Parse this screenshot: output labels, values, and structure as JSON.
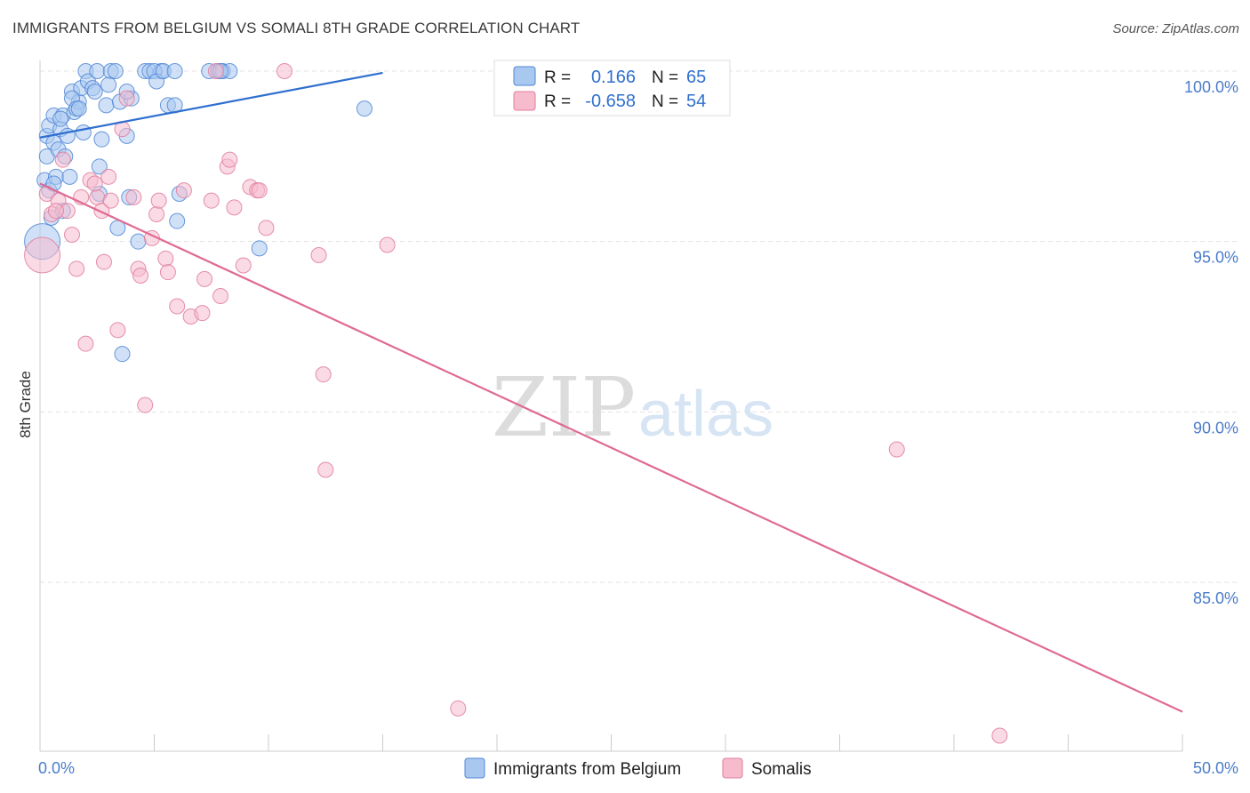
{
  "title": "IMMIGRANTS FROM BELGIUM VS SOMALI 8TH GRADE CORRELATION CHART",
  "source": "Source: ZipAtlas.com",
  "watermark": {
    "zip": "ZIP",
    "atlas": "atlas"
  },
  "colors": {
    "blue_fill": "#a9c8f0",
    "blue_stroke": "#4f86d6",
    "blue_line": "#2f6fcf",
    "pink_fill": "#f6bccd",
    "pink_stroke": "#e07c9c",
    "pink_line": "#e06a94",
    "grid": "#e3e3e3",
    "tick_text": "#4a7cc9"
  },
  "stats_legend": {
    "rows": [
      {
        "r_label": "R =",
        "r_value": "0.166",
        "n_label": "N =",
        "n_value": "65",
        "series": "blue"
      },
      {
        "r_label": "R =",
        "r_value": "-0.658",
        "n_label": "N =",
        "n_value": "54",
        "series": "pink"
      }
    ]
  },
  "chart_data": {
    "type": "scatter",
    "title": "IMMIGRANTS FROM BELGIUM VS SOMALI 8TH GRADE CORRELATION CHART",
    "xlabel": "",
    "ylabel": "8th Grade",
    "xlim": [
      0,
      50
    ],
    "ylim": [
      80.3,
      100.4
    ],
    "x_tick_labels": [
      "0.0%",
      "50.0%"
    ],
    "y_ticks": [
      100,
      95,
      90,
      85
    ],
    "y_tick_labels": [
      "100.0%",
      "95.0%",
      "90.0%",
      "85.0%"
    ],
    "legend": [
      "Immigrants from Belgium",
      "Somalis"
    ],
    "series": [
      {
        "name": "Immigrants from Belgium",
        "color": "blue",
        "r": 0.166,
        "n": 65,
        "trendline": {
          "x": [
            0,
            15
          ],
          "y": [
            98.05,
            99.95
          ]
        },
        "points": [
          {
            "x": 0.1,
            "y": 95.0,
            "big": true
          },
          {
            "x": 0.2,
            "y": 96.8
          },
          {
            "x": 0.3,
            "y": 97.5
          },
          {
            "x": 0.3,
            "y": 98.1
          },
          {
            "x": 0.4,
            "y": 98.4
          },
          {
            "x": 0.4,
            "y": 96.5
          },
          {
            "x": 0.5,
            "y": 95.7
          },
          {
            "x": 0.6,
            "y": 97.9
          },
          {
            "x": 0.6,
            "y": 98.7
          },
          {
            "x": 0.7,
            "y": 96.9
          },
          {
            "x": 0.8,
            "y": 97.7
          },
          {
            "x": 0.9,
            "y": 98.3
          },
          {
            "x": 1.0,
            "y": 95.9
          },
          {
            "x": 1.0,
            "y": 98.7
          },
          {
            "x": 1.1,
            "y": 97.5
          },
          {
            "x": 1.2,
            "y": 98.1
          },
          {
            "x": 1.3,
            "y": 96.9
          },
          {
            "x": 1.4,
            "y": 99.4
          },
          {
            "x": 1.5,
            "y": 98.8
          },
          {
            "x": 1.7,
            "y": 99.1
          },
          {
            "x": 1.8,
            "y": 99.5
          },
          {
            "x": 1.9,
            "y": 98.2
          },
          {
            "x": 2.0,
            "y": 100.0
          },
          {
            "x": 2.1,
            "y": 99.7
          },
          {
            "x": 2.3,
            "y": 99.5
          },
          {
            "x": 2.5,
            "y": 100.0
          },
          {
            "x": 2.6,
            "y": 97.2
          },
          {
            "x": 2.6,
            "y": 96.4
          },
          {
            "x": 2.9,
            "y": 99.0
          },
          {
            "x": 3.1,
            "y": 100.0
          },
          {
            "x": 3.3,
            "y": 100.0
          },
          {
            "x": 3.4,
            "y": 95.4
          },
          {
            "x": 3.5,
            "y": 99.1
          },
          {
            "x": 3.8,
            "y": 98.1
          },
          {
            "x": 2.4,
            "y": 99.4
          },
          {
            "x": 3.0,
            "y": 99.6
          },
          {
            "x": 4.0,
            "y": 99.2
          },
          {
            "x": 4.3,
            "y": 95.0
          },
          {
            "x": 4.6,
            "y": 100.0
          },
          {
            "x": 4.8,
            "y": 100.0
          },
          {
            "x": 5.3,
            "y": 100.0
          },
          {
            "x": 3.6,
            "y": 91.7
          },
          {
            "x": 3.8,
            "y": 99.4
          },
          {
            "x": 5.0,
            "y": 100.0
          },
          {
            "x": 5.1,
            "y": 99.7
          },
          {
            "x": 5.6,
            "y": 99.0
          },
          {
            "x": 3.9,
            "y": 96.3
          },
          {
            "x": 6.1,
            "y": 96.4
          },
          {
            "x": 6.0,
            "y": 95.6
          },
          {
            "x": 7.4,
            "y": 100.0
          },
          {
            "x": 1.4,
            "y": 99.2
          },
          {
            "x": 0.9,
            "y": 98.6
          },
          {
            "x": 1.6,
            "y": 98.9
          },
          {
            "x": 5.4,
            "y": 100.0
          },
          {
            "x": 5.9,
            "y": 100.0
          },
          {
            "x": 5.9,
            "y": 99.0
          },
          {
            "x": 7.8,
            "y": 100.0
          },
          {
            "x": 8.0,
            "y": 100.0
          },
          {
            "x": 8.3,
            "y": 100.0
          },
          {
            "x": 7.9,
            "y": 100.0
          },
          {
            "x": 9.6,
            "y": 94.8
          },
          {
            "x": 14.2,
            "y": 98.9
          },
          {
            "x": 1.7,
            "y": 98.9
          },
          {
            "x": 2.7,
            "y": 98.0
          },
          {
            "x": 0.6,
            "y": 96.7
          }
        ]
      },
      {
        "name": "Somalis",
        "color": "pink",
        "r": -0.658,
        "n": 54,
        "trendline": {
          "x": [
            0,
            50
          ],
          "y": [
            96.7,
            81.2
          ]
        },
        "points": [
          {
            "x": 0.1,
            "y": 94.6,
            "big": true
          },
          {
            "x": 0.3,
            "y": 96.4
          },
          {
            "x": 0.5,
            "y": 95.8
          },
          {
            "x": 0.8,
            "y": 96.2
          },
          {
            "x": 1.0,
            "y": 97.4
          },
          {
            "x": 1.2,
            "y": 95.9
          },
          {
            "x": 1.4,
            "y": 95.2
          },
          {
            "x": 1.6,
            "y": 94.2
          },
          {
            "x": 1.8,
            "y": 96.3
          },
          {
            "x": 2.0,
            "y": 92.0
          },
          {
            "x": 2.2,
            "y": 96.8
          },
          {
            "x": 2.5,
            "y": 96.3
          },
          {
            "x": 2.7,
            "y": 95.9
          },
          {
            "x": 2.8,
            "y": 94.4
          },
          {
            "x": 3.0,
            "y": 96.9
          },
          {
            "x": 3.1,
            "y": 96.2
          },
          {
            "x": 3.4,
            "y": 92.4
          },
          {
            "x": 3.6,
            "y": 98.3
          },
          {
            "x": 3.8,
            "y": 99.2
          },
          {
            "x": 4.1,
            "y": 96.3
          },
          {
            "x": 4.3,
            "y": 94.2
          },
          {
            "x": 4.4,
            "y": 94.0
          },
          {
            "x": 4.6,
            "y": 90.2
          },
          {
            "x": 4.9,
            "y": 95.1
          },
          {
            "x": 5.1,
            "y": 95.8
          },
          {
            "x": 5.2,
            "y": 96.2
          },
          {
            "x": 5.5,
            "y": 94.5
          },
          {
            "x": 5.6,
            "y": 94.1
          },
          {
            "x": 6.0,
            "y": 93.1
          },
          {
            "x": 6.3,
            "y": 96.5
          },
          {
            "x": 6.6,
            "y": 92.8
          },
          {
            "x": 7.1,
            "y": 92.9
          },
          {
            "x": 7.2,
            "y": 93.9
          },
          {
            "x": 7.5,
            "y": 96.2
          },
          {
            "x": 7.9,
            "y": 93.4
          },
          {
            "x": 8.2,
            "y": 97.2
          },
          {
            "x": 8.3,
            "y": 97.4
          },
          {
            "x": 8.5,
            "y": 96.0
          },
          {
            "x": 8.9,
            "y": 94.3
          },
          {
            "x": 9.2,
            "y": 96.6
          },
          {
            "x": 9.5,
            "y": 96.5
          },
          {
            "x": 9.9,
            "y": 95.4
          },
          {
            "x": 10.7,
            "y": 100.0
          },
          {
            "x": 12.2,
            "y": 94.6
          },
          {
            "x": 12.4,
            "y": 91.1
          },
          {
            "x": 12.5,
            "y": 88.3
          },
          {
            "x": 15.2,
            "y": 94.9
          },
          {
            "x": 18.3,
            "y": 81.3
          },
          {
            "x": 37.5,
            "y": 88.9
          },
          {
            "x": 42.0,
            "y": 80.5
          },
          {
            "x": 7.7,
            "y": 100.0
          },
          {
            "x": 9.6,
            "y": 96.5
          },
          {
            "x": 0.7,
            "y": 95.9
          },
          {
            "x": 2.4,
            "y": 96.7
          }
        ]
      }
    ]
  }
}
